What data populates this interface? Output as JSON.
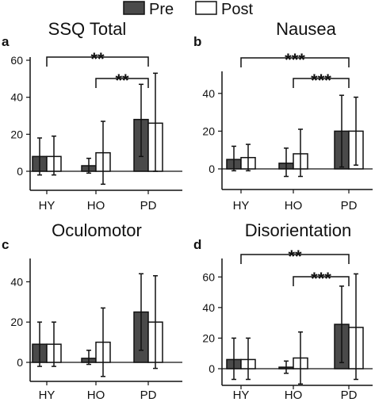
{
  "legend": {
    "pre": "Pre",
    "post": "Post"
  },
  "colors": {
    "pre": "#4a4a4a",
    "post": "#ffffff",
    "axis": "#111111"
  },
  "chart_data": [
    {
      "panel": "a",
      "type": "bar",
      "title": "SSQ Total",
      "categories": [
        "HY",
        "HO",
        "PD"
      ],
      "ylim": [
        -5,
        60
      ],
      "yticks": [
        0,
        20,
        40,
        60
      ],
      "series": [
        {
          "name": "Pre",
          "values": [
            8,
            3,
            28
          ],
          "err_low": [
            -2,
            -1,
            8
          ],
          "err_high": [
            18,
            7,
            47
          ]
        },
        {
          "name": "Post",
          "values": [
            8,
            10,
            26
          ],
          "err_low": [
            -2,
            -7,
            0
          ],
          "err_high": [
            19,
            27,
            53
          ]
        }
      ],
      "significance": [
        {
          "from": "HY",
          "to": "PD",
          "label": "**"
        },
        {
          "from": "HO",
          "to": "PD",
          "label": "**"
        }
      ]
    },
    {
      "panel": "b",
      "type": "bar",
      "title": "Nausea",
      "categories": [
        "HY",
        "HO",
        "PD"
      ],
      "ylim": [
        -5,
        50
      ],
      "yticks": [
        0,
        20,
        40
      ],
      "series": [
        {
          "name": "Pre",
          "values": [
            5,
            3,
            20
          ],
          "err_low": [
            -1,
            -4,
            1
          ],
          "err_high": [
            12,
            11,
            39
          ]
        },
        {
          "name": "Post",
          "values": [
            6,
            8,
            20
          ],
          "err_low": [
            -1,
            -4,
            2
          ],
          "err_high": [
            13,
            21,
            38
          ]
        }
      ],
      "significance": [
        {
          "from": "HY",
          "to": "PD",
          "label": "***"
        },
        {
          "from": "HO",
          "to": "PD",
          "label": "***"
        }
      ]
    },
    {
      "panel": "c",
      "type": "bar",
      "title": "Oculomotor",
      "categories": [
        "HY",
        "HO",
        "PD"
      ],
      "ylim": [
        -5,
        50
      ],
      "yticks": [
        0,
        20,
        40
      ],
      "series": [
        {
          "name": "Pre",
          "values": [
            9,
            2,
            25
          ],
          "err_low": [
            -2,
            -1,
            6
          ],
          "err_high": [
            20,
            6,
            44
          ]
        },
        {
          "name": "Post",
          "values": [
            9,
            10,
            20
          ],
          "err_low": [
            -2,
            -7,
            -3
          ],
          "err_high": [
            20,
            27,
            43
          ]
        }
      ],
      "significance": []
    },
    {
      "panel": "d",
      "type": "bar",
      "title": "Disorientation",
      "categories": [
        "HY",
        "HO",
        "PD"
      ],
      "ylim": [
        -5,
        70
      ],
      "yticks": [
        0,
        20,
        40,
        60
      ],
      "series": [
        {
          "name": "Pre",
          "values": [
            6,
            1,
            29
          ],
          "err_low": [
            -7,
            -3,
            4
          ],
          "err_high": [
            20,
            5,
            54
          ]
        },
        {
          "name": "Post",
          "values": [
            6,
            7,
            27
          ],
          "err_low": [
            -7,
            -10,
            -7
          ],
          "err_high": [
            20,
            24,
            62
          ]
        }
      ],
      "significance": [
        {
          "from": "HY",
          "to": "PD",
          "label": "**"
        },
        {
          "from": "HO",
          "to": "PD",
          "label": "***"
        }
      ]
    }
  ]
}
